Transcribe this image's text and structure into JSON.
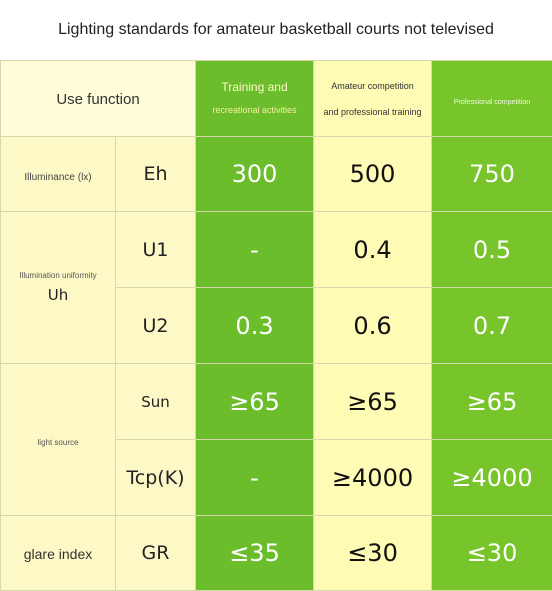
{
  "title": "Lighting standards for amateur basketball courts not televised",
  "header": {
    "use_function": "Use function",
    "col1_line1": "Training and",
    "col1_line2": "recreational activities",
    "col2_line1": "Amateur competition",
    "col2_line2": "and professional training",
    "col3": "Professional competition"
  },
  "rows": {
    "illuminance": {
      "category": "Illuminance (lx)",
      "symbol": "Eh",
      "values": [
        "300",
        "500",
        "750"
      ]
    },
    "uniformity": {
      "category": "Illumination uniformity",
      "sub": "Uh",
      "u1": {
        "symbol": "U1",
        "values": [
          "-",
          "0.4",
          "0.5"
        ]
      },
      "u2": {
        "symbol": "U2",
        "values": [
          "0.3",
          "0.6",
          "0.7"
        ]
      }
    },
    "light_source": {
      "category": "light source",
      "sun": {
        "symbol": "Sun",
        "values": [
          "≥65",
          "≥65",
          "≥65"
        ]
      },
      "tcp": {
        "symbol": "Tcp(K)",
        "values": [
          "-",
          "≥4000",
          "≥4000"
        ]
      }
    },
    "glare": {
      "category": "glare index",
      "symbol": "GR",
      "values": [
        "≤35",
        "≤30",
        "≤30"
      ]
    }
  },
  "colors": {
    "green": "#6bbd2c",
    "green_right": "#78c42b",
    "yellow": "#fefbb4",
    "cream": "#fffcd9"
  }
}
